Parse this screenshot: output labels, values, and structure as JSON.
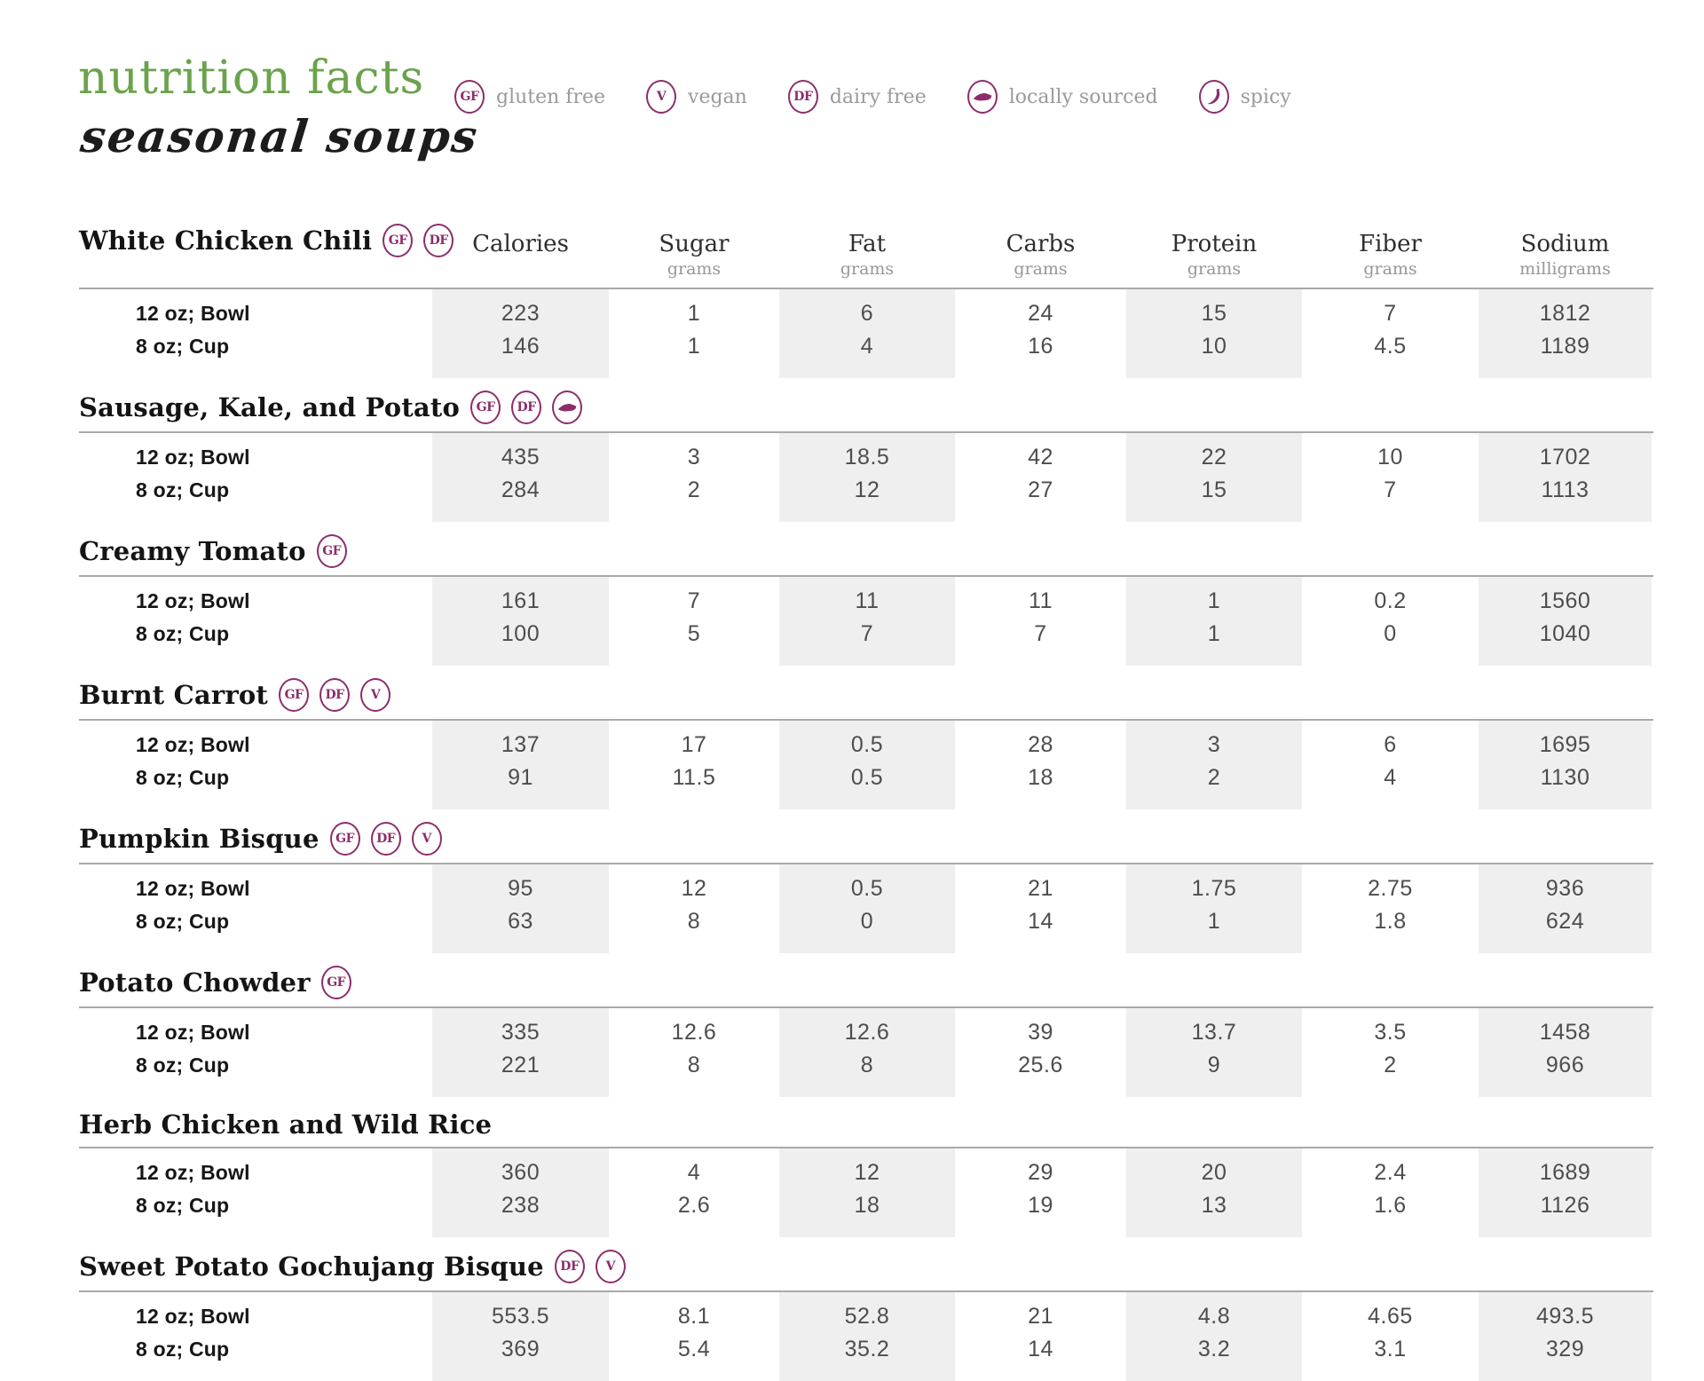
{
  "header": {
    "title": "nutrition facts",
    "subtitle": "seasonal soups"
  },
  "legend": {
    "items": [
      {
        "icon": "gluten-free-badge-icon",
        "badge": "GF",
        "label": "gluten free"
      },
      {
        "icon": "vegan-badge-icon",
        "badge": "V",
        "label": "vegan"
      },
      {
        "icon": "dairy-free-badge-icon",
        "badge": "DF",
        "label": "dairy free"
      },
      {
        "icon": "kentucky-icon",
        "badge": "KY",
        "label": "locally sourced"
      },
      {
        "icon": "pepper-icon",
        "badge": "SPICY",
        "label": "spicy"
      }
    ]
  },
  "table": {
    "columns": [
      {
        "label": "Calories",
        "unit": ""
      },
      {
        "label": "Sugar",
        "unit": "grams"
      },
      {
        "label": "Fat",
        "unit": "grams"
      },
      {
        "label": "Carbs",
        "unit": "grams"
      },
      {
        "label": "Protein",
        "unit": "grams"
      },
      {
        "label": "Fiber",
        "unit": "grams"
      },
      {
        "label": "Sodium",
        "unit": "milligrams"
      }
    ],
    "shaded_columns": [
      0,
      2,
      4,
      6
    ],
    "soups": [
      {
        "name": "White Chicken Chili",
        "badges": [
          "GF",
          "DF"
        ],
        "rows": [
          {
            "label": "12 oz; Bowl",
            "values": [
              "223",
              "1",
              "6",
              "24",
              "15",
              "7",
              "1812"
            ]
          },
          {
            "label": "8 oz; Cup",
            "values": [
              "146",
              "1",
              "4",
              "16",
              "10",
              "4.5",
              "1189"
            ]
          }
        ]
      },
      {
        "name": "Sausage, Kale, and Potato",
        "badges": [
          "GF",
          "DF",
          "KY"
        ],
        "rows": [
          {
            "label": "12 oz; Bowl",
            "values": [
              "435",
              "3",
              "18.5",
              "42",
              "22",
              "10",
              "1702"
            ]
          },
          {
            "label": "8 oz; Cup",
            "values": [
              "284",
              "2",
              "12",
              "27",
              "15",
              "7",
              "1113"
            ]
          }
        ]
      },
      {
        "name": "Creamy Tomato",
        "badges": [
          "GF"
        ],
        "rows": [
          {
            "label": "12 oz; Bowl",
            "values": [
              "161",
              "7",
              "11",
              "11",
              "1",
              "0.2",
              "1560"
            ]
          },
          {
            "label": "8 oz; Cup",
            "values": [
              "100",
              "5",
              "7",
              "7",
              "1",
              "0",
              "1040"
            ]
          }
        ]
      },
      {
        "name": "Burnt Carrot",
        "badges": [
          "GF",
          "DF",
          "V"
        ],
        "rows": [
          {
            "label": "12 oz; Bowl",
            "values": [
              "137",
              "17",
              "0.5",
              "28",
              "3",
              "6",
              "1695"
            ]
          },
          {
            "label": "8 oz; Cup",
            "values": [
              "91",
              "11.5",
              "0.5",
              "18",
              "2",
              "4",
              "1130"
            ]
          }
        ]
      },
      {
        "name": "Pumpkin Bisque",
        "badges": [
          "GF",
          "DF",
          "V"
        ],
        "rows": [
          {
            "label": "12 oz; Bowl",
            "values": [
              "95",
              "12",
              "0.5",
              "21",
              "1.75",
              "2.75",
              "936"
            ]
          },
          {
            "label": "8 oz; Cup",
            "values": [
              "63",
              "8",
              "0",
              "14",
              "1",
              "1.8",
              "624"
            ]
          }
        ]
      },
      {
        "name": "Potato Chowder",
        "badges": [
          "GF"
        ],
        "rows": [
          {
            "label": "12 oz; Bowl",
            "values": [
              "335",
              "12.6",
              "12.6",
              "39",
              "13.7",
              "3.5",
              "1458"
            ]
          },
          {
            "label": "8 oz; Cup",
            "values": [
              "221",
              "8",
              "8",
              "25.6",
              "9",
              "2",
              "966"
            ]
          }
        ]
      },
      {
        "name": "Herb Chicken and Wild Rice",
        "badges": [],
        "rows": [
          {
            "label": "12 oz; Bowl",
            "values": [
              "360",
              "4",
              "12",
              "29",
              "20",
              "2.4",
              "1689"
            ]
          },
          {
            "label": "8 oz; Cup",
            "values": [
              "238",
              "2.6",
              "18",
              "19",
              "13",
              "1.6",
              "1126"
            ]
          }
        ]
      },
      {
        "name": "Sweet Potato Gochujang Bisque",
        "badges": [
          "DF",
          "V"
        ],
        "rows": [
          {
            "label": "12 oz; Bowl",
            "values": [
              "553.5",
              "8.1",
              "52.8",
              "21",
              "4.8",
              "4.65",
              "493.5"
            ]
          },
          {
            "label": "8 oz; Cup",
            "values": [
              "369",
              "5.4",
              "35.2",
              "14",
              "3.2",
              "3.1",
              "329"
            ]
          }
        ]
      }
    ]
  },
  "colors": {
    "accent_green": "#6ba34c",
    "accent_purple": "#8c2d6a",
    "shade_gray": "#efefef",
    "rule_gray": "#a9a9a9",
    "value_text": "#4d4d4d",
    "unit_text": "#979797"
  }
}
